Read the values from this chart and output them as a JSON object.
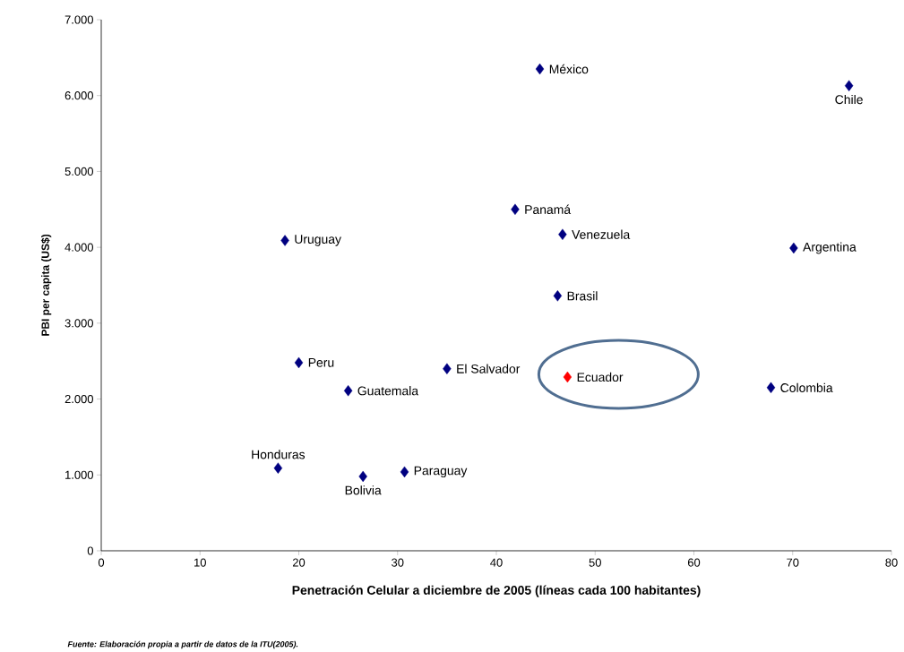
{
  "chart_data": {
    "type": "scatter",
    "xlabel": "Penetración Celular a diciembre de 2005 (líneas cada 100 habitantes)",
    "ylabel": "PBI per capita (US$)",
    "x": [
      44.4,
      75.7,
      41.9,
      46.7,
      18.6,
      70.1,
      46.2,
      20.0,
      35.0,
      47.2,
      25.0,
      67.8,
      17.9,
      26.5,
      30.7
    ],
    "values": [
      6350,
      6130,
      4500,
      4170,
      4090,
      3990,
      3360,
      2480,
      2400,
      2290,
      2110,
      2150,
      1090,
      980,
      1040
    ],
    "colors": [
      "#000080",
      "#000080",
      "#000080",
      "#000080",
      "#000080",
      "#000080",
      "#000080",
      "#000080",
      "#000080",
      "#ff0000",
      "#000080",
      "#000080",
      "#000080",
      "#000080",
      "#000080"
    ],
    "marker": "diamond",
    "xlim": [
      0,
      80
    ],
    "xticks": [
      0,
      10,
      20,
      30,
      40,
      50,
      60,
      70,
      80
    ],
    "ylim": [
      0,
      7000
    ],
    "yticks": [
      0,
      {
        "value": 1000,
        "label": "1.000"
      },
      {
        "value": 2000,
        "label": "2.000"
      },
      {
        "value": 3000,
        "label": "3.000"
      },
      {
        "value": 4000,
        "label": "4.000"
      },
      {
        "value": 5000,
        "label": "5.000"
      },
      {
        "value": 6000,
        "label": "6.000"
      },
      {
        "value": 7000,
        "label": "7.000"
      }
    ],
    "annotations": [
      {
        "text": "México",
        "x": 44.4,
        "y": 6350
      },
      {
        "text": "Chile",
        "x": 75.7,
        "y": 6130
      },
      {
        "text": "Panamá",
        "x": 41.9,
        "y": 4500
      },
      {
        "text": "Venezuela",
        "x": 46.7,
        "y": 4170
      },
      {
        "text": "Uruguay",
        "x": 18.6,
        "y": 4090
      },
      {
        "text": "Argentina",
        "x": 70.1,
        "y": 3990
      },
      {
        "text": "Brasil",
        "x": 46.2,
        "y": 3360
      },
      {
        "text": "Peru",
        "x": 20.0,
        "y": 2480
      },
      {
        "text": "El Salvador",
        "x": 35.0,
        "y": 2400
      },
      {
        "text": "Ecuador",
        "x": 47.2,
        "y": 2290
      },
      {
        "text": "Guatemala",
        "x": 25.0,
        "y": 2110
      },
      {
        "text": "Colombia",
        "x": 67.8,
        "y": 2150
      },
      {
        "text": "Honduras",
        "x": 17.9,
        "y": 1090
      },
      {
        "text": "Bolivia",
        "x": 26.5,
        "y": 980
      },
      {
        "text": "Paraguay",
        "x": 30.7,
        "y": 1040
      },
      "Fuente: Elaboración propia a partir de datos de la ITU(2005)."
    ]
  }
}
